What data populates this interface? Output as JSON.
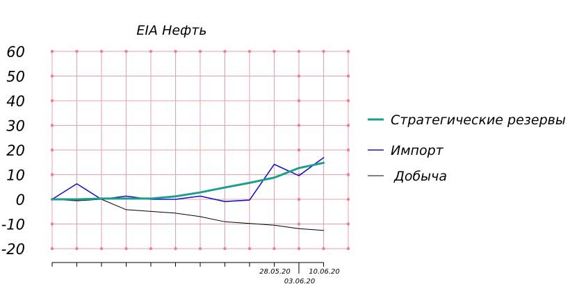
{
  "chart_data": {
    "type": "line",
    "title": "EIA Нефть",
    "xlabel": "",
    "ylabel": "",
    "ylim": [
      -20,
      60
    ],
    "yticks": [
      -20,
      -10,
      0,
      10,
      20,
      30,
      40,
      50,
      60
    ],
    "grid": true,
    "legend_position": "right",
    "x_count": 12,
    "x_tick_labels": [
      {
        "index": 9,
        "label": "28.05.20",
        "row": 0
      },
      {
        "index": 10,
        "label": "03.06.20",
        "row": 1
      },
      {
        "index": 11,
        "label": "10.06.20",
        "row": 0
      }
    ],
    "series": [
      {
        "name": "Стратегические резервы",
        "color": "#1a9e8f",
        "width": 3,
        "values": [
          0,
          0,
          0.3,
          0.3,
          0.3,
          1.2,
          2.8,
          4.8,
          6.7,
          8.8,
          12.7,
          14.8
        ]
      },
      {
        "name": "Импорт",
        "color": "#1414c8",
        "width": 1.6,
        "values": [
          0,
          6.3,
          0,
          1.3,
          0,
          0,
          1.3,
          -0.9,
          -0.3,
          14.2,
          9.6,
          16.9
        ]
      },
      {
        "name": "Добыча",
        "color": "#000000",
        "width": 1,
        "values": [
          0,
          -0.6,
          0,
          -4.2,
          -4.9,
          -5.6,
          -7,
          -9.1,
          -9.8,
          -10.5,
          -11.9,
          -12.6
        ]
      }
    ]
  },
  "colors": {
    "grid": "#e8a0ac",
    "grid_dot": "#f07c8c",
    "axis": "#000000"
  }
}
